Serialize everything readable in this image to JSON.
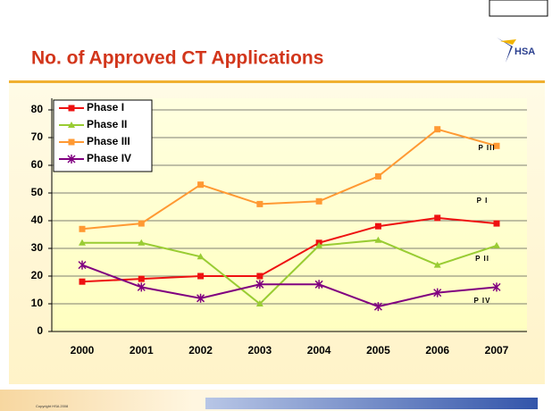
{
  "title": "No. of Approved CT Applications",
  "logo": "HSA",
  "footer": "Copyright HSA 2008",
  "chart_data": {
    "type": "line",
    "categories": [
      "2000",
      "2001",
      "2002",
      "2003",
      "2004",
      "2005",
      "2006",
      "2007"
    ],
    "series": [
      {
        "name": "Phase I",
        "color": "#ee1111",
        "marker": "square",
        "values": [
          18,
          19,
          20,
          20,
          32,
          38,
          41,
          39
        ]
      },
      {
        "name": "Phase II",
        "color": "#99cc33",
        "marker": "triangle",
        "values": [
          32,
          32,
          27,
          10,
          31,
          33,
          24,
          31
        ]
      },
      {
        "name": "Phase III",
        "color": "#ff9933",
        "marker": "square",
        "values": [
          37,
          39,
          53,
          46,
          47,
          56,
          73,
          67
        ]
      },
      {
        "name": "Phase IV",
        "color": "#800080",
        "marker": "asterisk",
        "values": [
          24,
          16,
          12,
          17,
          17,
          9,
          14,
          16
        ]
      }
    ],
    "ylim": [
      0,
      80
    ],
    "yticks": [
      0,
      10,
      20,
      30,
      40,
      50,
      60,
      70,
      80
    ],
    "grid": true,
    "legend": "top-left",
    "annotations": [
      "P III",
      "P I",
      "P II",
      "P IV"
    ]
  }
}
